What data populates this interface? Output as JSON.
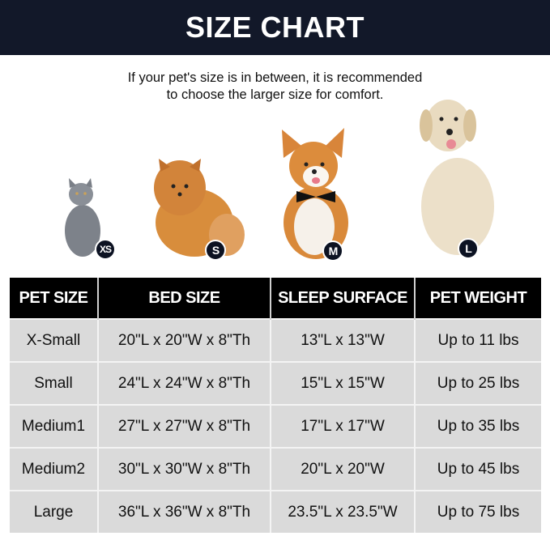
{
  "title": "SIZE CHART",
  "note": [
    "If your pet's size is in between, it is recommended",
    "to choose the larger size for comfort."
  ],
  "pets": [
    {
      "animal": "cat",
      "badge": "XS"
    },
    {
      "animal": "pomeranian",
      "badge": "S"
    },
    {
      "animal": "corgi",
      "badge": "M"
    },
    {
      "animal": "golden-retriever",
      "badge": "L"
    }
  ],
  "colors": {
    "banner": "#121829",
    "header": "#000000",
    "row": "#dadada",
    "badge": "#0c1222"
  },
  "table": {
    "headers": [
      "PET SIZE",
      "BED SIZE",
      "SLEEP SURFACE",
      "PET WEIGHT"
    ],
    "rows": [
      [
        "X-Small",
        "20\"L x 20\"W x 8\"Th",
        "13\"L x 13\"W",
        "Up to 11 lbs"
      ],
      [
        "Small",
        "24\"L x 24\"W x 8\"Th",
        "15\"L x 15\"W",
        "Up to 25 lbs"
      ],
      [
        "Medium1",
        "27\"L x 27\"W x 8\"Th",
        "17\"L x 17\"W",
        "Up to 35 lbs"
      ],
      [
        "Medium2",
        "30\"L x 30\"W x 8\"Th",
        "20\"L x 20\"W",
        "Up to 45 lbs"
      ],
      [
        "Large",
        "36\"L x 36\"W x 8\"Th",
        "23.5\"L x 23.5\"W",
        "Up to 75 lbs"
      ]
    ]
  }
}
